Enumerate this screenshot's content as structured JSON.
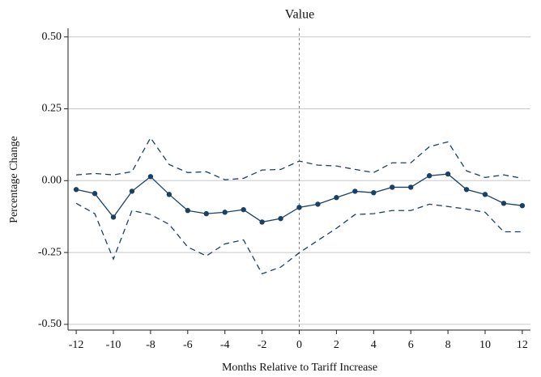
{
  "chart_data": {
    "type": "line",
    "title": "Value",
    "x_label": "Months Relative to Tariff Increase",
    "y_label": "Percentage Change",
    "x": [
      -12,
      -11,
      -10,
      -9,
      -8,
      -7,
      -6,
      -5,
      -4,
      -3,
      -2,
      -1,
      0,
      1,
      2,
      3,
      4,
      5,
      6,
      7,
      8,
      9,
      10,
      11,
      12
    ],
    "series": [
      {
        "color": "#1a4066",
        "style": "solid",
        "markers": true,
        "values": [
          -0.031,
          -0.045,
          -0.127,
          -0.037,
          0.014,
          -0.048,
          -0.104,
          -0.115,
          -0.11,
          -0.101,
          -0.144,
          -0.132,
          -0.093,
          -0.082,
          -0.059,
          -0.037,
          -0.042,
          -0.023,
          -0.023,
          0.017,
          0.023,
          -0.031,
          -0.048,
          -0.079,
          -0.087
        ]
      },
      {
        "color": "#1a4066",
        "style": "dashed",
        "markers": false,
        "values": [
          0.02,
          0.025,
          0.02,
          0.031,
          0.149,
          0.056,
          0.028,
          0.031,
          0.003,
          0.008,
          0.037,
          0.039,
          0.068,
          0.054,
          0.051,
          0.039,
          0.028,
          0.062,
          0.062,
          0.118,
          0.135,
          0.034,
          0.011,
          0.02,
          0.008
        ]
      },
      {
        "color": "#1a4066",
        "style": "dashed",
        "markers": false,
        "values": [
          -0.079,
          -0.115,
          -0.273,
          -0.104,
          -0.118,
          -0.152,
          -0.231,
          -0.262,
          -0.22,
          -0.206,
          -0.324,
          -0.301,
          -0.251,
          -0.208,
          -0.166,
          -0.118,
          -0.115,
          -0.104,
          -0.104,
          -0.082,
          -0.09,
          -0.099,
          -0.11,
          -0.178,
          -0.178
        ]
      }
    ],
    "xlim": [
      -12.44,
      12.44
    ],
    "ylim": [
      -0.52,
      0.53
    ],
    "xticks": [
      -12,
      -10,
      -8,
      -6,
      -4,
      -2,
      0,
      2,
      4,
      6,
      8,
      10,
      12
    ],
    "yticks": [
      {
        "value": -0.5,
        "label": "-0.50"
      },
      {
        "value": -0.25,
        "label": "-0.25"
      },
      {
        "value": 0,
        "label": "0.00"
      },
      {
        "value": 0.25,
        "label": "0.25"
      },
      {
        "value": 0.5,
        "label": "0.50"
      }
    ],
    "grid": true,
    "vline": 0
  }
}
